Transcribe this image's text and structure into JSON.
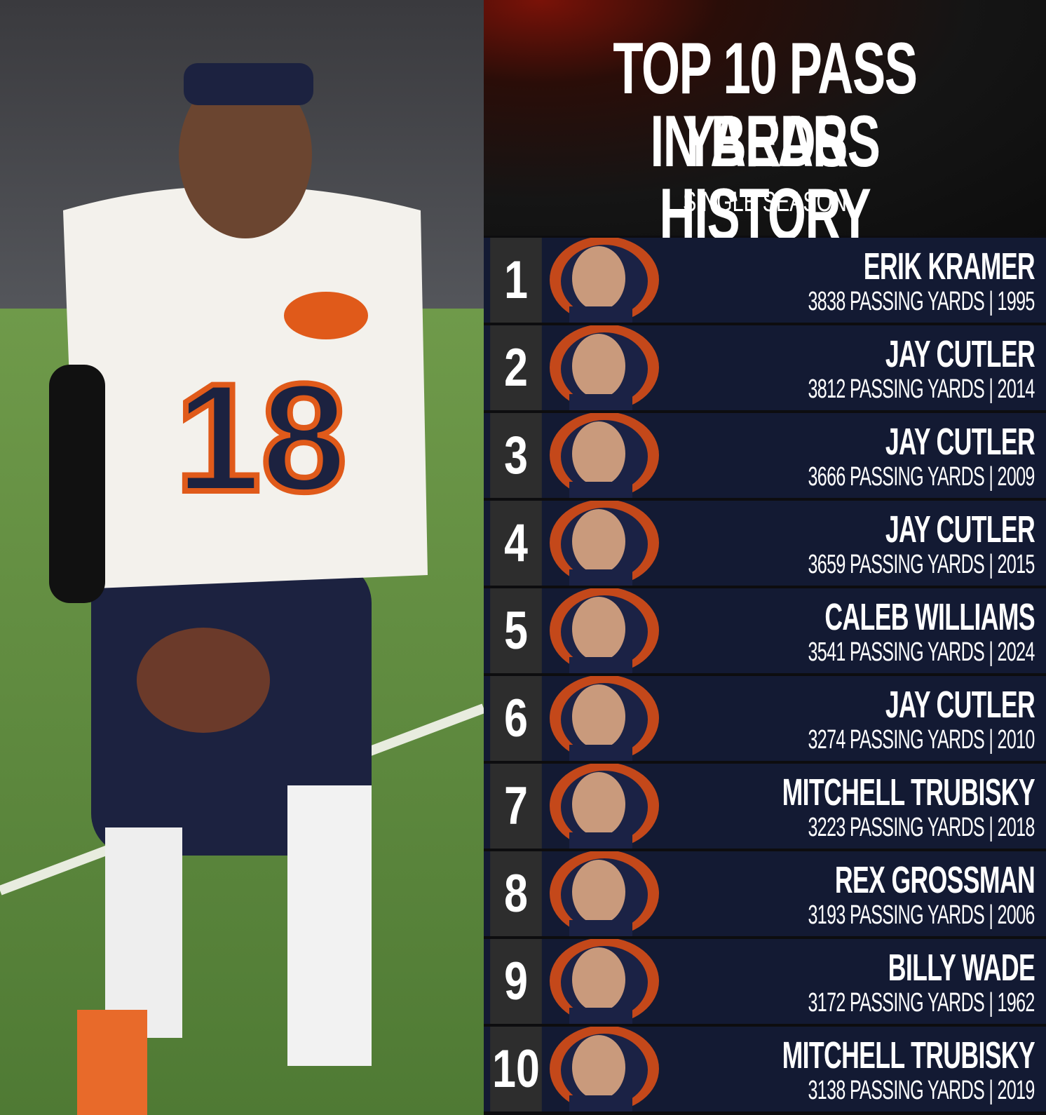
{
  "header": {
    "title_lines": [
      "TOP 10 PASS YARDS",
      "IN BEARS HISTORY"
    ],
    "subtitle": "SINGLE SEASON"
  },
  "rows": [
    {
      "rank": 1,
      "name": "ERIK KRAMER",
      "stat": "3838 PASSING YARDS | 1995"
    },
    {
      "rank": 2,
      "name": "JAY CUTLER",
      "stat": "3812 PASSING YARDS | 2014"
    },
    {
      "rank": 3,
      "name": "JAY CUTLER",
      "stat": "3666 PASSING YARDS | 2009"
    },
    {
      "rank": 4,
      "name": "JAY CUTLER",
      "stat": "3659 PASSING YARDS | 2015"
    },
    {
      "rank": 5,
      "name": "CALEB WILLIAMS",
      "stat": "3541 PASSING YARDS | 2024"
    },
    {
      "rank": 6,
      "name": "JAY CUTLER",
      "stat": "3274 PASSING YARDS | 2010"
    },
    {
      "rank": 7,
      "name": "MITCHELL TRUBISKY",
      "stat": "3223 PASSING YARDS | 2018"
    },
    {
      "rank": 8,
      "name": "REX GROSSMAN",
      "stat": "3193 PASSING YARDS | 2006"
    },
    {
      "rank": 9,
      "name": "BILLY WADE",
      "stat": "3172 PASSING YARDS | 1962"
    },
    {
      "rank": 10,
      "name": "MITCHELL TRUBISKY",
      "stat": "3138 PASSING YARDS | 2019"
    }
  ]
}
